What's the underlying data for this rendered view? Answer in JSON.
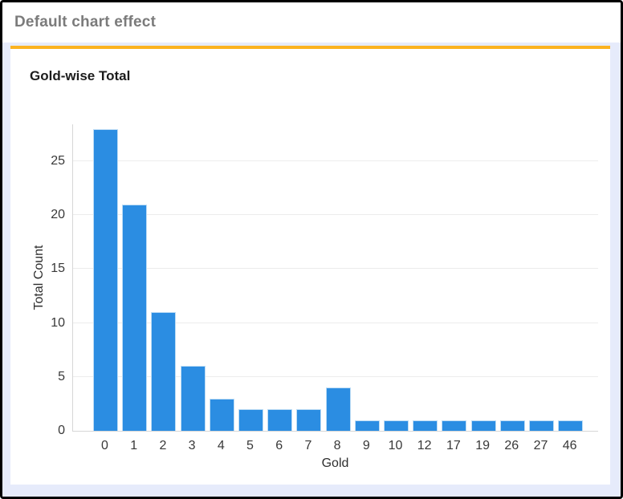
{
  "window": {
    "title": "Default chart effect"
  },
  "chart_data": {
    "type": "bar",
    "title": "Gold-wise Total",
    "xlabel": "Gold",
    "ylabel": "Total Count",
    "categories": [
      "0",
      "1",
      "2",
      "3",
      "4",
      "5",
      "6",
      "7",
      "8",
      "9",
      "10",
      "12",
      "17",
      "19",
      "26",
      "27",
      "46"
    ],
    "values": [
      28,
      21,
      11,
      6,
      3,
      2,
      2,
      2,
      4,
      1,
      1,
      1,
      1,
      1,
      1,
      1,
      1
    ],
    "yticks": [
      0,
      5,
      10,
      15,
      20,
      25
    ],
    "ylim": [
      0,
      28.5
    ],
    "grid": true,
    "legend_position": "none",
    "bar_color": "#2b8de2"
  },
  "colors": {
    "accent_line": "#fbb321",
    "page_background": "#e6ebfb",
    "bar": "#2b8de2",
    "header_title": "#7b7b7b",
    "gridline": "#ececec",
    "axis_line": "#d6d6d6"
  }
}
